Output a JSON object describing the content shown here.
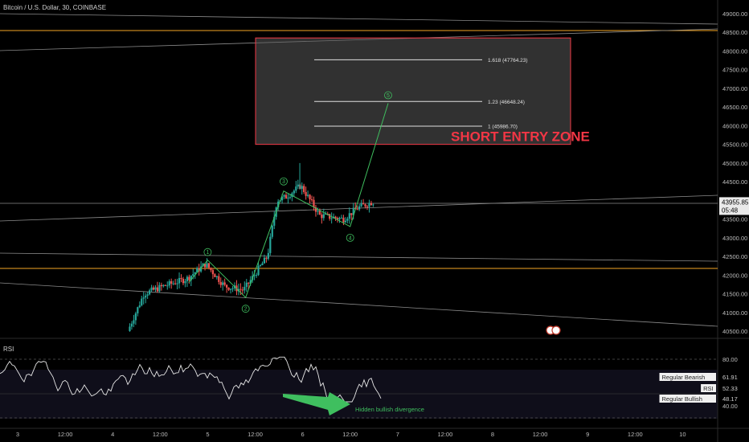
{
  "header": {
    "symbol_title": "Bitcoin / U.S. Dollar, 30, COINBASE"
  },
  "indicator": {
    "name": "RSI"
  },
  "colors": {
    "up": "#26a69a",
    "down": "#ef5350",
    "wave": "#3fbf5f",
    "zone": "#f23645",
    "orange": "#f5a623"
  },
  "current_price": {
    "value": "43955.85",
    "countdown": "05:48"
  },
  "fib_levels": [
    {
      "label": "1.618 (47764.23)",
      "price": 47764.23
    },
    {
      "label": "1.23 (46648.24)",
      "price": 46648.24
    },
    {
      "label": "1 (45986.70)",
      "price": 45986.7
    }
  ],
  "zone": {
    "label": "SHORT ENTRY ZONE",
    "top": 48350,
    "bottom": 45500
  },
  "waves": [
    {
      "label": "1",
      "price": 42400
    },
    {
      "label": "2",
      "price": 41400
    },
    {
      "label": "3",
      "price": 44250
    },
    {
      "label": "4",
      "price": 43300
    },
    {
      "label": "5",
      "price": 46600
    }
  ],
  "rsi_panel": {
    "levels": [
      "80.00",
      "40.00"
    ],
    "tags": [
      {
        "label": "Regular Bearish",
        "value": "61.91"
      },
      {
        "label": "RSI",
        "value": "52.33"
      },
      {
        "label": "Regular Bullish",
        "value": "48.17"
      }
    ],
    "annotation": "Hidden bullish divergence"
  },
  "chart_data": {
    "type": "candlestick",
    "title": "Bitcoin / U.S. Dollar, 30, COINBASE",
    "y_ticks": [
      40500,
      41000,
      41500,
      42000,
      42500,
      43000,
      43500,
      44000,
      44500,
      45000,
      45500,
      46000,
      46500,
      47000,
      47500,
      48000,
      48500,
      49000
    ],
    "y_tick_labels": [
      "40500.00",
      "41000.00",
      "41500.00",
      "42000.00",
      "42500.00",
      "43000.00",
      "43500.00",
      "44000.00",
      "44500.00",
      "45000.00",
      "45500.00",
      "46000.00",
      "46500.00",
      "47000.00",
      "47500.00",
      "48000.00",
      "48500.00",
      "49000.00"
    ],
    "x_ticks": [
      "3",
      "12:00",
      "4",
      "12:00",
      "5",
      "12:00",
      "6",
      "12:00",
      "7",
      "12:00",
      "8",
      "12:00",
      "9",
      "12:00",
      "10"
    ],
    "ylim": [
      40350,
      49150
    ],
    "close_path": [
      [
        4.18,
        40500
      ],
      [
        4.35,
        41500
      ],
      [
        4.55,
        41700
      ],
      [
        4.8,
        41900
      ],
      [
        5.0,
        42300
      ],
      [
        5.2,
        41700
      ],
      [
        5.4,
        41600
      ],
      [
        5.65,
        42500
      ],
      [
        5.75,
        44000
      ],
      [
        5.85,
        44100
      ],
      [
        6.0,
        44400
      ],
      [
        6.2,
        43600
      ],
      [
        6.45,
        43500
      ],
      [
        6.6,
        43800
      ],
      [
        6.75,
        43956
      ]
    ],
    "rsi_range": [
      0,
      100
    ]
  }
}
